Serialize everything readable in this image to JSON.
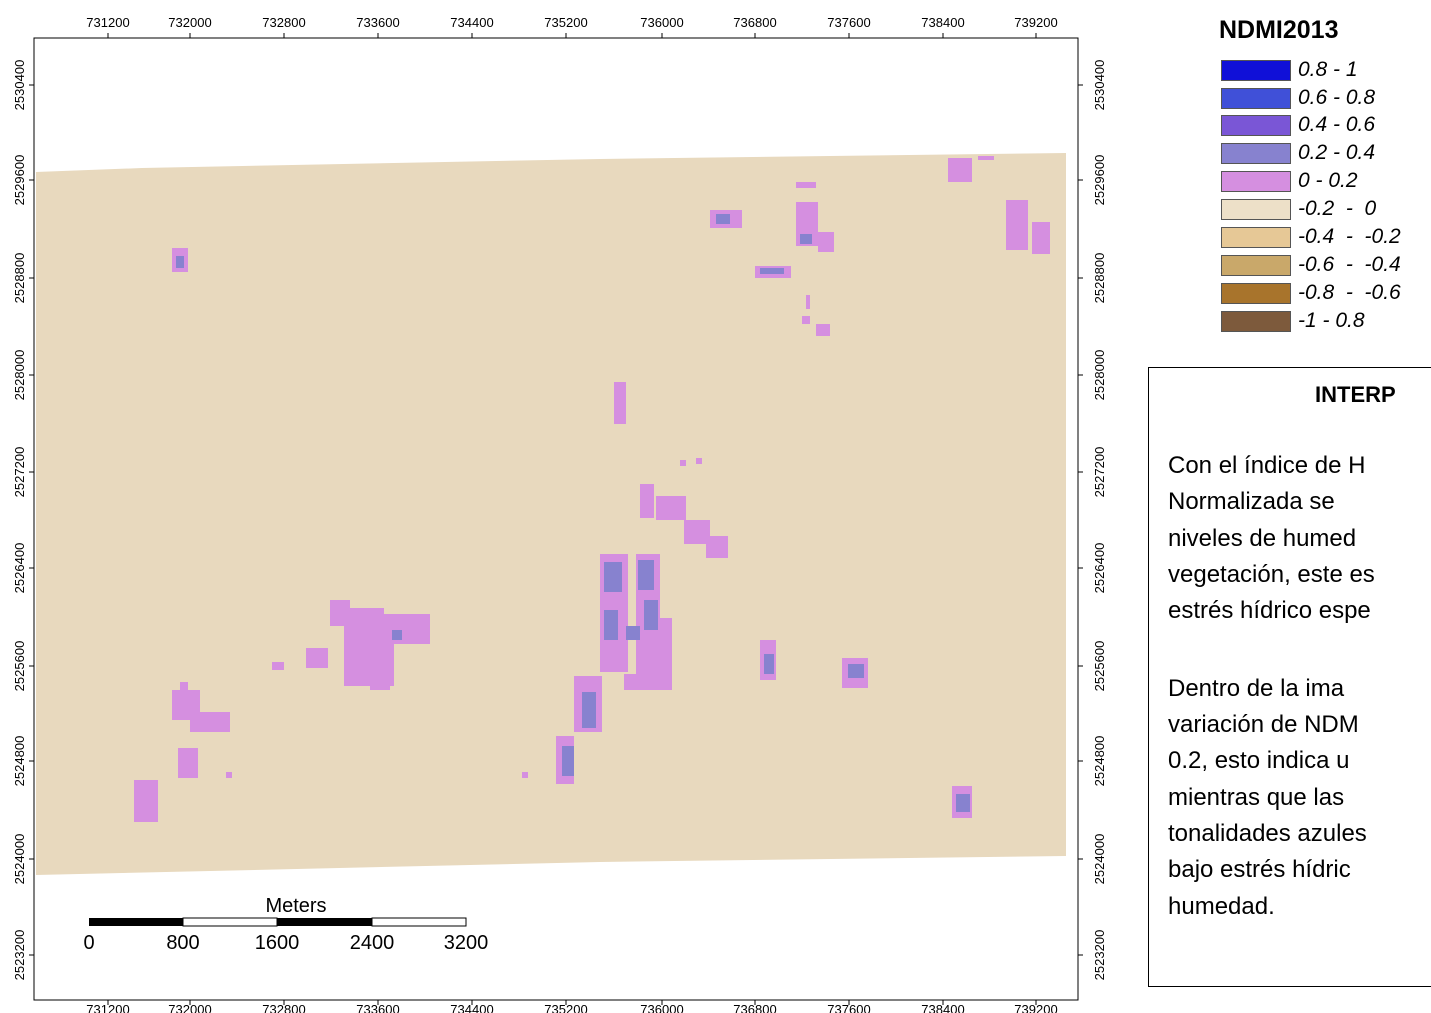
{
  "map": {
    "x_ticks": [
      "731200",
      "732000",
      "732800",
      "733600",
      "734400",
      "735200",
      "736000",
      "736800",
      "737600",
      "738400",
      "739200"
    ],
    "y_ticks": [
      "2530400",
      "2529600",
      "2528800",
      "2528000",
      "2527200",
      "2526400",
      "2525600",
      "2524800",
      "2524000",
      "2523200"
    ],
    "colors": {
      "background": "#e8d9be",
      "class_0_02": "#d58fe0",
      "class_02_04": "#8782cf"
    }
  },
  "scalebar": {
    "units": "Meters",
    "labels": [
      "0",
      "800",
      "1600",
      "2400",
      "3200"
    ]
  },
  "legend": {
    "title": "NDMI2013",
    "items": [
      {
        "label": "0.8 - 1",
        "color": "#1010d8"
      },
      {
        "label": "0.6 - 0.8",
        "color": "#4050d8"
      },
      {
        "label": "0.4 - 0.6",
        "color": "#7a56d6"
      },
      {
        "label": "0.2 - 0.4",
        "color": "#8782cf"
      },
      {
        "label": "0 - 0.2",
        "color": "#d58fe0"
      },
      {
        "label": "-0.2  -  0",
        "color": "#ede0c8"
      },
      {
        "label": "-0.4  -  -0.2",
        "color": "#e6c896"
      },
      {
        "label": "-0.6  -  -0.4",
        "color": "#c9a86a"
      },
      {
        "label": "-0.8  -  -0.6",
        "color": "#a8742c"
      },
      {
        "label": "-1 - 0.8",
        "color": "#7d5a3c"
      }
    ]
  },
  "interpretation": {
    "title": "INTERP",
    "lines": [
      "Con el índice de H",
      "Normalizada   se",
      "niveles  de  humed",
      "vegetación, este es",
      "estrés hídrico espe",
      "Dentro  de  la  ima",
      "variación de NDM",
      "0.2,  esto  indica  u",
      "mientras  que  las",
      "tonalidades  azules",
      "bajo   estrés   hídric",
      "humedad."
    ]
  }
}
